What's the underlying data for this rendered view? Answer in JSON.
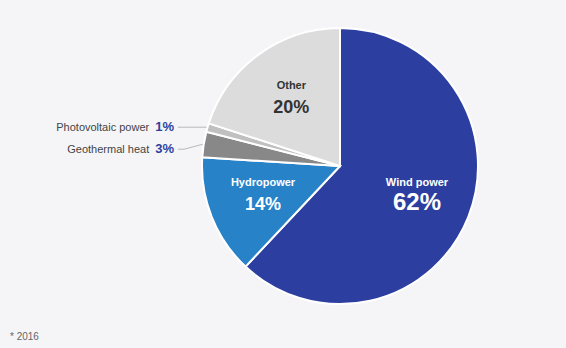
{
  "chart_data": {
    "type": "pie",
    "categories": [
      "Wind power",
      "Hydropower",
      "Geothermal heat",
      "Photovoltaic power",
      "Other"
    ],
    "values": [
      62,
      14,
      3,
      1,
      20
    ],
    "value_labels": [
      "62%",
      "14%",
      "3%",
      "1%",
      "20%"
    ],
    "colors": [
      "#2c3fa0",
      "#2882c8",
      "#888888",
      "#c0c0c0",
      "#dcdcdc"
    ],
    "data_labels": true,
    "footnote": "* 2016"
  }
}
